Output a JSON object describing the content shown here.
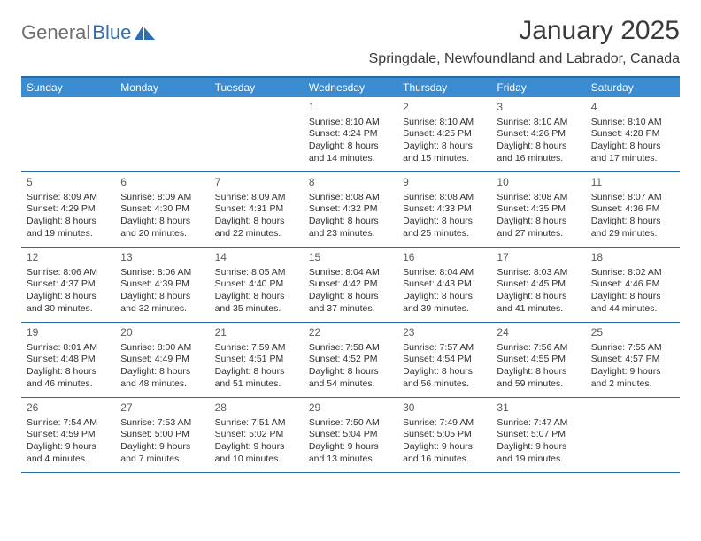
{
  "logo": {
    "text1": "General",
    "text2": "Blue"
  },
  "title": "January 2025",
  "location": "Springdale, Newfoundland and Labrador, Canada",
  "colors": {
    "header_bg": "#3b8bd0",
    "border": "#2a6aa8",
    "logo_gray": "#6f6f6f",
    "logo_blue": "#2f6fb0",
    "text": "#303030"
  },
  "weekdays": [
    "Sunday",
    "Monday",
    "Tuesday",
    "Wednesday",
    "Thursday",
    "Friday",
    "Saturday"
  ],
  "weeks": [
    [
      null,
      null,
      null,
      {
        "n": "1",
        "sr": "8:10 AM",
        "ss": "4:24 PM",
        "dh": "8",
        "dm": "14"
      },
      {
        "n": "2",
        "sr": "8:10 AM",
        "ss": "4:25 PM",
        "dh": "8",
        "dm": "15"
      },
      {
        "n": "3",
        "sr": "8:10 AM",
        "ss": "4:26 PM",
        "dh": "8",
        "dm": "16"
      },
      {
        "n": "4",
        "sr": "8:10 AM",
        "ss": "4:28 PM",
        "dh": "8",
        "dm": "17"
      }
    ],
    [
      {
        "n": "5",
        "sr": "8:09 AM",
        "ss": "4:29 PM",
        "dh": "8",
        "dm": "19"
      },
      {
        "n": "6",
        "sr": "8:09 AM",
        "ss": "4:30 PM",
        "dh": "8",
        "dm": "20"
      },
      {
        "n": "7",
        "sr": "8:09 AM",
        "ss": "4:31 PM",
        "dh": "8",
        "dm": "22"
      },
      {
        "n": "8",
        "sr": "8:08 AM",
        "ss": "4:32 PM",
        "dh": "8",
        "dm": "23"
      },
      {
        "n": "9",
        "sr": "8:08 AM",
        "ss": "4:33 PM",
        "dh": "8",
        "dm": "25"
      },
      {
        "n": "10",
        "sr": "8:08 AM",
        "ss": "4:35 PM",
        "dh": "8",
        "dm": "27"
      },
      {
        "n": "11",
        "sr": "8:07 AM",
        "ss": "4:36 PM",
        "dh": "8",
        "dm": "29"
      }
    ],
    [
      {
        "n": "12",
        "sr": "8:06 AM",
        "ss": "4:37 PM",
        "dh": "8",
        "dm": "30"
      },
      {
        "n": "13",
        "sr": "8:06 AM",
        "ss": "4:39 PM",
        "dh": "8",
        "dm": "32"
      },
      {
        "n": "14",
        "sr": "8:05 AM",
        "ss": "4:40 PM",
        "dh": "8",
        "dm": "35"
      },
      {
        "n": "15",
        "sr": "8:04 AM",
        "ss": "4:42 PM",
        "dh": "8",
        "dm": "37"
      },
      {
        "n": "16",
        "sr": "8:04 AM",
        "ss": "4:43 PM",
        "dh": "8",
        "dm": "39"
      },
      {
        "n": "17",
        "sr": "8:03 AM",
        "ss": "4:45 PM",
        "dh": "8",
        "dm": "41"
      },
      {
        "n": "18",
        "sr": "8:02 AM",
        "ss": "4:46 PM",
        "dh": "8",
        "dm": "44"
      }
    ],
    [
      {
        "n": "19",
        "sr": "8:01 AM",
        "ss": "4:48 PM",
        "dh": "8",
        "dm": "46"
      },
      {
        "n": "20",
        "sr": "8:00 AM",
        "ss": "4:49 PM",
        "dh": "8",
        "dm": "48"
      },
      {
        "n": "21",
        "sr": "7:59 AM",
        "ss": "4:51 PM",
        "dh": "8",
        "dm": "51"
      },
      {
        "n": "22",
        "sr": "7:58 AM",
        "ss": "4:52 PM",
        "dh": "8",
        "dm": "54"
      },
      {
        "n": "23",
        "sr": "7:57 AM",
        "ss": "4:54 PM",
        "dh": "8",
        "dm": "56"
      },
      {
        "n": "24",
        "sr": "7:56 AM",
        "ss": "4:55 PM",
        "dh": "8",
        "dm": "59"
      },
      {
        "n": "25",
        "sr": "7:55 AM",
        "ss": "4:57 PM",
        "dh": "9",
        "dm": "2"
      }
    ],
    [
      {
        "n": "26",
        "sr": "7:54 AM",
        "ss": "4:59 PM",
        "dh": "9",
        "dm": "4"
      },
      {
        "n": "27",
        "sr": "7:53 AM",
        "ss": "5:00 PM",
        "dh": "9",
        "dm": "7"
      },
      {
        "n": "28",
        "sr": "7:51 AM",
        "ss": "5:02 PM",
        "dh": "9",
        "dm": "10"
      },
      {
        "n": "29",
        "sr": "7:50 AM",
        "ss": "5:04 PM",
        "dh": "9",
        "dm": "13"
      },
      {
        "n": "30",
        "sr": "7:49 AM",
        "ss": "5:05 PM",
        "dh": "9",
        "dm": "16"
      },
      {
        "n": "31",
        "sr": "7:47 AM",
        "ss": "5:07 PM",
        "dh": "9",
        "dm": "19"
      },
      null
    ]
  ]
}
